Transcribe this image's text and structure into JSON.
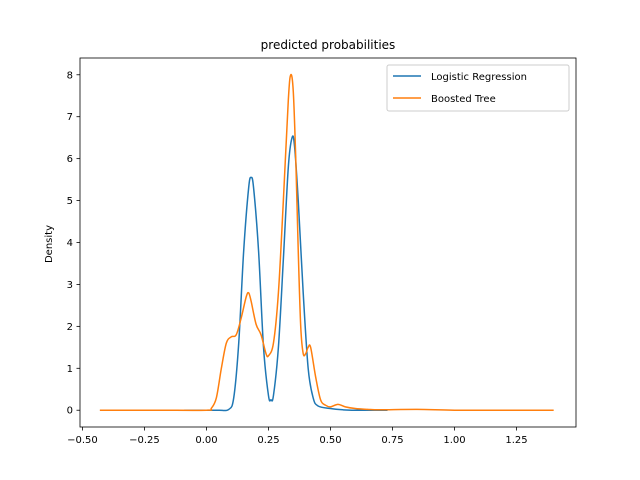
{
  "chart_data": {
    "type": "line",
    "title": "predicted probabilities",
    "xlabel": "",
    "ylabel": "Density",
    "xlim": [
      -0.51,
      1.49
    ],
    "ylim": [
      -0.4,
      8.4
    ],
    "xticks": [
      -0.5,
      -0.25,
      0.0,
      0.25,
      0.5,
      0.75,
      1.0,
      1.25
    ],
    "xtick_labels": [
      "−0.50",
      "−0.25",
      "0.00",
      "0.25",
      "0.50",
      "0.75",
      "1.00",
      "1.25"
    ],
    "yticks": [
      0,
      1,
      2,
      3,
      4,
      5,
      6,
      7,
      8
    ],
    "ytick_labels": [
      "0",
      "1",
      "2",
      "3",
      "4",
      "5",
      "6",
      "7",
      "8"
    ],
    "grid": false,
    "legend_position": "top-right",
    "series": [
      {
        "name": "Logistic Regression",
        "color": "#1f77b4",
        "points": [
          [
            -0.09,
            0.0
          ],
          [
            0.0,
            0.0
          ],
          [
            0.05,
            0.0
          ],
          [
            0.09,
            0.02
          ],
          [
            0.11,
            0.3
          ],
          [
            0.13,
            1.6
          ],
          [
            0.15,
            3.8
          ],
          [
            0.17,
            5.3
          ],
          [
            0.18,
            5.55
          ],
          [
            0.19,
            5.3
          ],
          [
            0.21,
            3.8
          ],
          [
            0.23,
            1.5
          ],
          [
            0.25,
            0.35
          ],
          [
            0.26,
            0.25
          ],
          [
            0.27,
            0.35
          ],
          [
            0.29,
            1.5
          ],
          [
            0.31,
            3.6
          ],
          [
            0.33,
            5.8
          ],
          [
            0.345,
            6.5
          ],
          [
            0.355,
            6.3
          ],
          [
            0.37,
            5.0
          ],
          [
            0.39,
            2.8
          ],
          [
            0.41,
            1.0
          ],
          [
            0.43,
            0.3
          ],
          [
            0.45,
            0.1
          ],
          [
            0.5,
            0.04
          ],
          [
            0.55,
            0.01
          ],
          [
            0.6,
            0.0
          ],
          [
            0.73,
            0.0
          ]
        ]
      },
      {
        "name": "Boosted Tree",
        "color": "#ff7f0e",
        "points": [
          [
            -0.43,
            0.0
          ],
          [
            -0.2,
            0.0
          ],
          [
            0.0,
            0.0
          ],
          [
            0.02,
            0.05
          ],
          [
            0.04,
            0.3
          ],
          [
            0.06,
            1.0
          ],
          [
            0.08,
            1.6
          ],
          [
            0.1,
            1.75
          ],
          [
            0.12,
            1.8
          ],
          [
            0.14,
            2.2
          ],
          [
            0.16,
            2.7
          ],
          [
            0.17,
            2.8
          ],
          [
            0.18,
            2.6
          ],
          [
            0.2,
            2.05
          ],
          [
            0.22,
            1.8
          ],
          [
            0.24,
            1.35
          ],
          [
            0.25,
            1.3
          ],
          [
            0.27,
            1.6
          ],
          [
            0.29,
            2.8
          ],
          [
            0.31,
            5.0
          ],
          [
            0.33,
            7.4
          ],
          [
            0.34,
            8.0
          ],
          [
            0.35,
            7.6
          ],
          [
            0.36,
            6.0
          ],
          [
            0.37,
            3.8
          ],
          [
            0.38,
            2.0
          ],
          [
            0.39,
            1.35
          ],
          [
            0.4,
            1.35
          ],
          [
            0.41,
            1.5
          ],
          [
            0.42,
            1.5
          ],
          [
            0.44,
            0.8
          ],
          [
            0.46,
            0.25
          ],
          [
            0.48,
            0.12
          ],
          [
            0.5,
            0.08
          ],
          [
            0.53,
            0.14
          ],
          [
            0.56,
            0.08
          ],
          [
            0.6,
            0.04
          ],
          [
            0.65,
            0.02
          ],
          [
            0.7,
            0.01
          ],
          [
            0.85,
            0.02
          ],
          [
            1.0,
            0.0
          ],
          [
            1.2,
            0.0
          ],
          [
            1.4,
            0.0
          ]
        ]
      }
    ]
  }
}
